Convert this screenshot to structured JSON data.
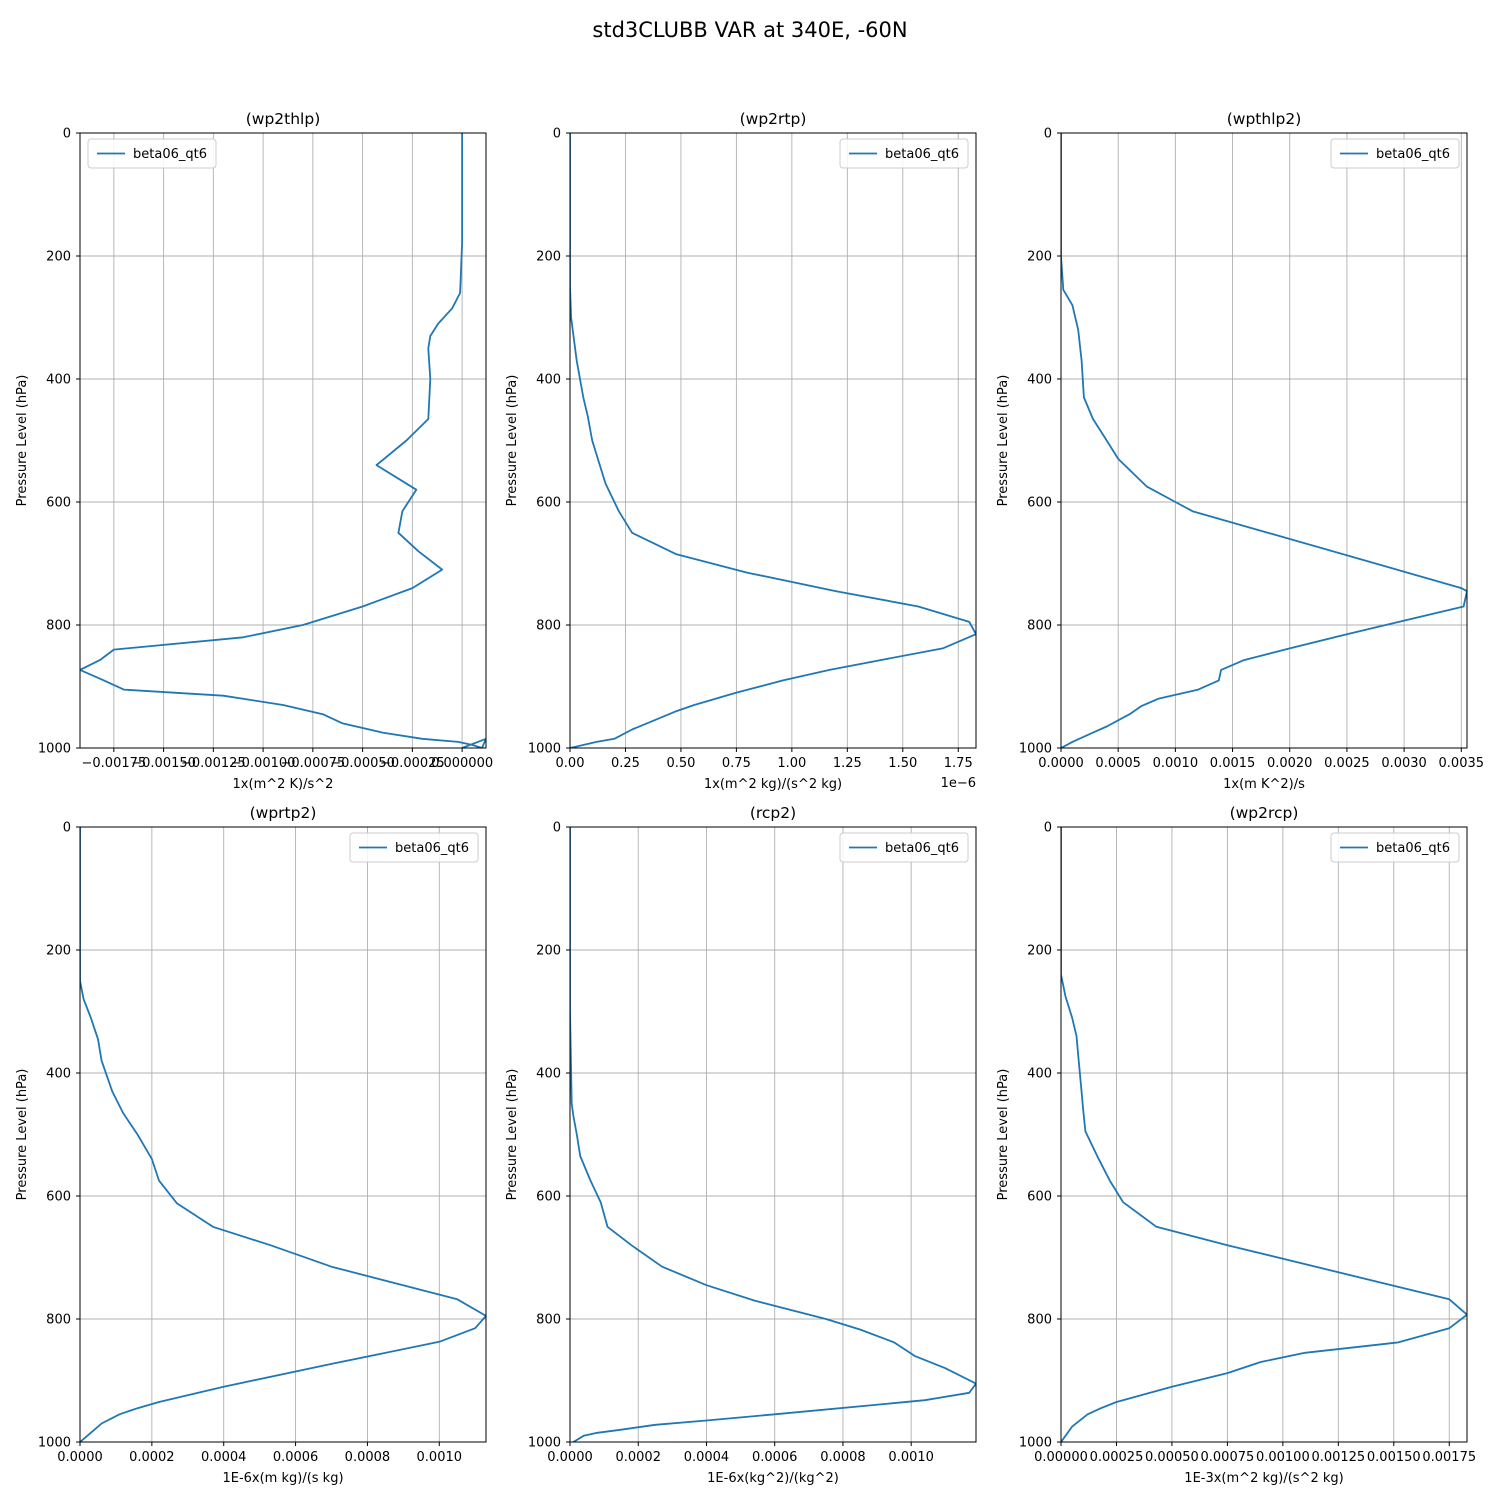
{
  "figure": {
    "title": "std3CLUBB VAR at 340E, -60N"
  },
  "colors": {
    "series": "#1f77b4",
    "grid": "#b0b0b0",
    "axes": "#000000"
  },
  "chart_data": [
    {
      "type": "line",
      "title": "(wp2thlp)",
      "xlabel": "1x(m^2 K)/s^2",
      "ylabel": "Pressure Level (hPa)",
      "xlim": [
        -0.00192,
        0.00012
      ],
      "ylim": [
        1000,
        0
      ],
      "x_offset_text": "",
      "xticks": [
        -0.00175,
        -0.0015,
        -0.00125,
        -0.001,
        -0.00075,
        -0.0005,
        -0.00025,
        0.0
      ],
      "xtick_labels": [
        "−0.00175",
        "−0.00150",
        "−0.00125",
        "−0.00100",
        "−0.00075",
        "−0.00050",
        "−0.00025",
        "0.000000"
      ],
      "yticks": [
        0,
        200,
        400,
        600,
        800,
        1000
      ],
      "ytick_labels": [
        "0",
        "200",
        "400",
        "600",
        "800",
        "1000"
      ],
      "legend": {
        "position": "upper-left"
      },
      "series": [
        {
          "name": "beta06_qt6",
          "x": [
            0.0,
            0.0,
            0.0,
            -1e-05,
            -5e-05,
            -0.00012,
            -0.00016,
            -0.00017,
            -0.00016,
            -0.00017,
            -0.00028,
            -0.00043,
            -0.00023,
            -0.0003,
            -0.00032,
            -0.00022,
            -0.0001,
            -0.00025,
            -0.0005,
            -0.0008,
            -0.0011,
            -0.00175,
            -0.00182,
            -0.00192,
            -0.0018,
            -0.0017,
            -0.0012,
            -0.0009,
            -0.0007,
            -0.0006,
            -0.0004,
            -0.0002,
            -2e-05,
            5e-05,
            0.0001,
            0.00012,
            0.0
          ],
          "y": [
            0,
            100,
            180,
            260,
            285,
            310,
            330,
            350,
            400,
            465,
            500,
            540,
            580,
            615,
            650,
            680,
            710,
            740,
            770,
            800,
            820,
            840,
            857,
            873,
            890,
            905,
            915,
            930,
            945,
            960,
            975,
            985,
            990,
            995,
            1000,
            985,
            1000
          ]
        }
      ]
    },
    {
      "type": "line",
      "title": "(wp2rtp)",
      "xlabel": "1x(m^2 kg)/(s^2 kg)",
      "ylabel": "Pressure Level (hPa)",
      "xlim": [
        0.0,
        1.83
      ],
      "ylim": [
        1000,
        0
      ],
      "x_offset_text": "1e−6",
      "xticks": [
        0.0,
        0.25,
        0.5,
        0.75,
        1.0,
        1.25,
        1.5,
        1.75
      ],
      "xtick_labels": [
        "0.00",
        "0.25",
        "0.50",
        "0.75",
        "1.00",
        "1.25",
        "1.50",
        "1.75"
      ],
      "yticks": [
        0,
        200,
        400,
        600,
        800,
        1000
      ],
      "ytick_labels": [
        "0",
        "200",
        "400",
        "600",
        "800",
        "1000"
      ],
      "legend": {
        "position": "upper-right"
      },
      "series": [
        {
          "name": "beta06_qt6",
          "x": [
            0.0,
            0.0,
            0.0,
            0.005,
            0.03,
            0.06,
            0.08,
            0.1,
            0.16,
            0.22,
            0.28,
            0.48,
            0.8,
            1.2,
            1.57,
            1.8,
            1.83,
            1.68,
            1.4,
            1.17,
            0.96,
            0.75,
            0.56,
            0.48,
            0.38,
            0.28,
            0.2,
            0.12,
            0.0
          ],
          "y": [
            0,
            150,
            250,
            300,
            370,
            430,
            460,
            500,
            570,
            615,
            650,
            685,
            715,
            745,
            770,
            795,
            815,
            838,
            857,
            873,
            890,
            910,
            930,
            940,
            955,
            970,
            985,
            990,
            1000
          ]
        }
      ]
    },
    {
      "type": "line",
      "title": "(wpthlp2)",
      "xlabel": "1x(m K^2)/s",
      "ylabel": "Pressure Level (hPa)",
      "xlim": [
        0.0,
        0.00355
      ],
      "ylim": [
        1000,
        0
      ],
      "x_offset_text": "",
      "xticks": [
        0.0,
        0.0005,
        0.001,
        0.0015,
        0.002,
        0.0025,
        0.003,
        0.0035
      ],
      "xtick_labels": [
        "0.0000",
        "0.0005",
        "0.0010",
        "0.0015",
        "0.0020",
        "0.0025",
        "0.0030",
        "0.0035"
      ],
      "yticks": [
        0,
        200,
        400,
        600,
        800,
        1000
      ],
      "ytick_labels": [
        "0",
        "200",
        "400",
        "600",
        "800",
        "1000"
      ],
      "legend": {
        "position": "upper-right"
      },
      "series": [
        {
          "name": "beta06_qt6",
          "x": [
            0.0,
            0.0,
            2e-05,
            0.0001,
            0.00015,
            0.00018,
            0.0002,
            0.00028,
            0.0004,
            0.0005,
            0.00075,
            0.001,
            0.00115,
            0.0035,
            0.00355,
            0.00352,
            0.0025,
            0.002,
            0.0016,
            0.0014,
            0.00138,
            0.0012,
            0.00085,
            0.0007,
            0.0006,
            0.0004,
            0.00028,
            0.0001,
            0.0
          ],
          "y": [
            0,
            200,
            255,
            280,
            320,
            370,
            430,
            465,
            500,
            530,
            575,
            600,
            615,
            740,
            745,
            770,
            815,
            838,
            857,
            873,
            890,
            905,
            920,
            932,
            945,
            965,
            975,
            990,
            1000
          ]
        }
      ]
    },
    {
      "type": "line",
      "title": "(wprtp2)",
      "xlabel": "1E-6x(m kg)/(s kg)",
      "ylabel": "Pressure Level (hPa)",
      "xlim": [
        0.0,
        0.00113
      ],
      "ylim": [
        1000,
        0
      ],
      "x_offset_text": "",
      "xticks": [
        0.0,
        0.0002,
        0.0004,
        0.0006,
        0.0008,
        0.001
      ],
      "xtick_labels": [
        "0.0000",
        "0.0002",
        "0.0004",
        "0.0006",
        "0.0008",
        "0.0010"
      ],
      "yticks": [
        0,
        200,
        400,
        600,
        800,
        1000
      ],
      "ytick_labels": [
        "0",
        "200",
        "400",
        "600",
        "800",
        "1000"
      ],
      "legend": {
        "position": "upper-right"
      },
      "series": [
        {
          "name": "beta06_qt6",
          "x": [
            0.0,
            0.0,
            1e-05,
            3e-05,
            5e-05,
            6e-05,
            9e-05,
            0.00012,
            0.00016,
            0.0002,
            0.00022,
            0.00027,
            0.00037,
            0.00053,
            0.0007,
            0.00105,
            0.00113,
            0.0011,
            0.001,
            0.0007,
            0.0004,
            0.00022,
            0.00016,
            0.00011,
            6e-05,
            3e-05,
            0.0
          ],
          "y": [
            0,
            250,
            280,
            310,
            345,
            380,
            430,
            465,
            500,
            540,
            575,
            612,
            650,
            680,
            715,
            768,
            795,
            815,
            837,
            873,
            910,
            935,
            945,
            955,
            970,
            985,
            1000
          ]
        }
      ]
    },
    {
      "type": "line",
      "title": "(rcp2)",
      "xlabel": "1E-6x(kg^2)/(kg^2)",
      "ylabel": "Pressure Level (hPa)",
      "xlim": [
        0.0,
        0.00119
      ],
      "ylim": [
        1000,
        0
      ],
      "x_offset_text": "",
      "xticks": [
        0.0,
        0.0002,
        0.0004,
        0.0006,
        0.0008,
        0.001
      ],
      "xtick_labels": [
        "0.0000",
        "0.0002",
        "0.0004",
        "0.0006",
        "0.0008",
        "0.0010"
      ],
      "yticks": [
        0,
        200,
        400,
        600,
        800,
        1000
      ],
      "ytick_labels": [
        "0",
        "200",
        "400",
        "600",
        "800",
        "1000"
      ],
      "legend": {
        "position": "upper-right"
      },
      "series": [
        {
          "name": "beta06_qt6",
          "x": [
            0.0,
            0.0,
            5e-06,
            1e-05,
            2e-05,
            3e-05,
            6e-05,
            9e-05,
            0.00011,
            0.00018,
            0.00027,
            0.0004,
            0.00054,
            0.00075,
            0.00085,
            0.00095,
            0.00101,
            0.0011,
            0.00119,
            0.00117,
            0.00104,
            0.0006,
            0.0004,
            0.00025,
            0.00015,
            8e-05,
            4e-05,
            1e-05
          ],
          "y": [
            0,
            300,
            450,
            470,
            500,
            535,
            575,
            610,
            650,
            680,
            715,
            745,
            770,
            800,
            817,
            838,
            860,
            880,
            905,
            920,
            932,
            955,
            965,
            972,
            980,
            985,
            990,
            1000
          ]
        }
      ]
    },
    {
      "type": "line",
      "title": "(wp2rcp)",
      "xlabel": "1E-3x(m^2 kg)/(s^2 kg)",
      "ylabel": "Pressure Level (hPa)",
      "xlim": [
        0.0,
        0.00183
      ],
      "ylim": [
        1000,
        0
      ],
      "x_offset_text": "",
      "xticks": [
        0.0,
        0.00025,
        0.0005,
        0.00075,
        0.001,
        0.00125,
        0.0015,
        0.00175
      ],
      "xtick_labels": [
        "0.00000",
        "0.00025",
        "0.00050",
        "0.00075",
        "0.00100",
        "0.00125",
        "0.00150",
        "0.00175"
      ],
      "yticks": [
        0,
        200,
        400,
        600,
        800,
        1000
      ],
      "ytick_labels": [
        "0",
        "200",
        "400",
        "600",
        "800",
        "1000"
      ],
      "legend": {
        "position": "upper-right"
      },
      "series": [
        {
          "name": "beta06_qt6",
          "x": [
            0.0,
            0.0,
            2e-05,
            5e-05,
            7e-05,
            8e-05,
            9e-05,
            0.0001,
            0.00011,
            0.00017,
            0.00022,
            0.00028,
            0.00043,
            0.00075,
            0.00175,
            0.00183,
            0.00175,
            0.00152,
            0.0011,
            0.0009,
            0.00075,
            0.0005,
            0.00035,
            0.00025,
            0.00018,
            0.00012,
            5e-05,
            0.0
          ],
          "y": [
            0,
            240,
            275,
            310,
            340,
            380,
            420,
            460,
            495,
            540,
            575,
            610,
            650,
            680,
            768,
            793,
            815,
            838,
            855,
            870,
            888,
            910,
            925,
            935,
            945,
            955,
            975,
            1000
          ]
        }
      ]
    }
  ]
}
